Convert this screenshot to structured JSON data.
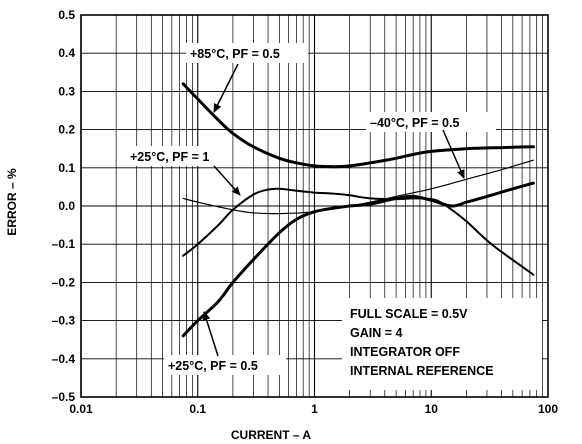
{
  "chart_data": {
    "type": "line",
    "xlabel": "CURRENT – A",
    "ylabel": "ERROR – %",
    "xscale": "log",
    "xlim": [
      0.01,
      100
    ],
    "ylim": [
      -0.5,
      0.5
    ],
    "x_ticks": [
      "0.01",
      "0.1",
      "1",
      "10",
      "100"
    ],
    "y_ticks": [
      "0.5",
      "0.4",
      "0.3",
      "0.2",
      "0.1",
      "0.0",
      "–0.1",
      "–0.2",
      "–0.3",
      "–0.4",
      "–0.5"
    ],
    "grid": true,
    "series": [
      {
        "name": "+85°C, PF = 0.5",
        "stroke": "thick",
        "x": [
          0.075,
          0.1,
          0.15,
          0.2,
          0.3,
          0.5,
          0.7,
          1,
          1.5,
          2,
          3,
          5,
          7,
          10,
          20,
          40,
          75
        ],
        "y": [
          0.32,
          0.28,
          0.225,
          0.19,
          0.155,
          0.125,
          0.113,
          0.105,
          0.103,
          0.105,
          0.113,
          0.125,
          0.135,
          0.143,
          0.15,
          0.153,
          0.155
        ]
      },
      {
        "name": "+25°C, PF = 1",
        "stroke": "normal",
        "x": [
          0.075,
          0.1,
          0.15,
          0.2,
          0.3,
          0.4,
          0.5,
          0.7,
          1,
          1.5,
          2,
          3,
          5,
          7,
          10,
          12,
          15,
          20,
          30,
          40,
          75
        ],
        "y": [
          -0.13,
          -0.1,
          -0.05,
          -0.01,
          0.03,
          0.043,
          0.045,
          0.04,
          0.035,
          0.032,
          0.028,
          0.02,
          0.018,
          0.02,
          0.018,
          0.01,
          -0.01,
          -0.04,
          -0.09,
          -0.12,
          -0.18
        ]
      },
      {
        "name": "–40°C, PF = 0.5",
        "stroke": "thin",
        "x": [
          0.075,
          0.1,
          0.2,
          0.3,
          0.5,
          1,
          2,
          3,
          5,
          10,
          20,
          40,
          75
        ],
        "y": [
          0.02,
          0.01,
          -0.01,
          -0.018,
          -0.02,
          -0.015,
          0.0,
          0.01,
          0.025,
          0.045,
          0.07,
          0.095,
          0.12
        ]
      },
      {
        "name": "+25°C, PF = 0.5",
        "stroke": "thick",
        "x": [
          0.075,
          0.1,
          0.15,
          0.2,
          0.3,
          0.5,
          0.7,
          1,
          1.5,
          2,
          3,
          5,
          7,
          10,
          15,
          20,
          30,
          50,
          75
        ],
        "y": [
          -0.34,
          -0.3,
          -0.25,
          -0.2,
          -0.14,
          -0.07,
          -0.035,
          -0.015,
          -0.005,
          0.0,
          0.005,
          0.02,
          0.025,
          0.015,
          0.0,
          0.01,
          0.025,
          0.045,
          0.06
        ]
      }
    ],
    "annotations": [
      "+85°C, PF = 0.5",
      "+25°C, PF = 1",
      "–40°C, PF = 0.5",
      "+25°C, PF = 0.5"
    ],
    "notes": [
      "FULL SCALE = 0.5V",
      "GAIN = 4",
      "INTEGRATOR OFF",
      "INTERNAL REFERENCE"
    ]
  }
}
